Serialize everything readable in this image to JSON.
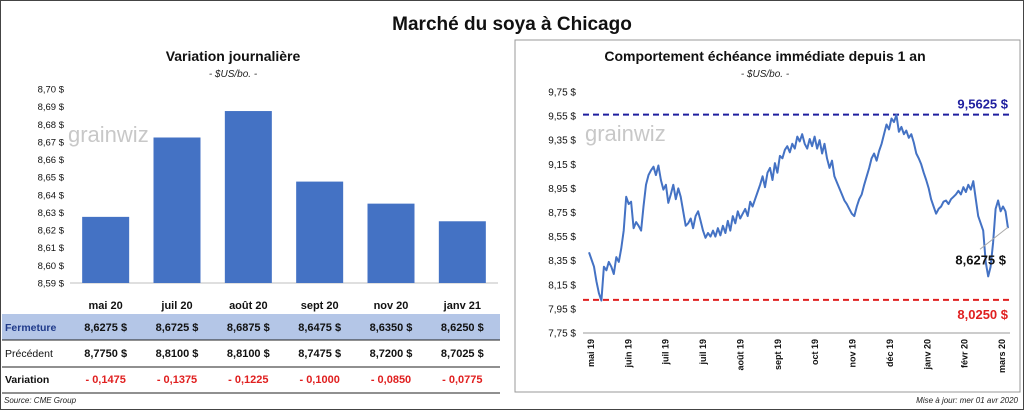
{
  "title": "Marché du soya à Chicago",
  "watermark": "grainwiz",
  "footer": {
    "source": "Source: CME Group",
    "updated": "Mise à jour: mer 01 avr 2020"
  },
  "colors": {
    "bar": "#4472c4",
    "line": "#4472c4",
    "high_line": "#1f1f9f",
    "low_line": "#e02020",
    "fermeture_row": "#b4c6e7",
    "negative": "#e02020"
  },
  "chart_data": [
    {
      "type": "bar",
      "title": "Variation journalière",
      "subtitle": "- $US/bo. -",
      "categories": [
        "mai 20",
        "juil 20",
        "août 20",
        "sept 20",
        "nov 20",
        "janv 21"
      ],
      "values": [
        8.6275,
        8.6725,
        8.6875,
        8.6475,
        8.635,
        8.625
      ],
      "ylim": [
        8.59,
        8.7
      ],
      "yticks": [
        "8,59 $",
        "8,60 $",
        "8,61 $",
        "8,62 $",
        "8,63 $",
        "8,64 $",
        "8,65 $",
        "8,66 $",
        "8,67 $",
        "8,68 $",
        "8,69 $",
        "8,70 $"
      ],
      "table": {
        "rows": [
          {
            "label": "Fermeture",
            "cells": [
              "8,6275  $",
              "8,6725  $",
              "8,6875  $",
              "8,6475  $",
              "8,6350  $",
              "8,6250  $"
            ]
          },
          {
            "label": "Précédent",
            "cells": [
              "8,7750  $",
              "8,8100  $",
              "8,8100  $",
              "8,7475  $",
              "8,7200  $",
              "8,7025  $"
            ]
          },
          {
            "label": "Variation",
            "cells": [
              "- 0,1475",
              "- 0,1375",
              "- 0,1225",
              "- 0,1000",
              "- 0,0850",
              "- 0,0775"
            ]
          }
        ]
      }
    },
    {
      "type": "line",
      "title": "Comportement  échéance immédiate depuis 1 an",
      "subtitle": "- $US/bo. -",
      "ylim": [
        7.75,
        9.75
      ],
      "yticks": [
        "7,75 $",
        "7,95 $",
        "8,15 $",
        "8,35 $",
        "8,55 $",
        "8,75 $",
        "8,95 $",
        "9,15 $",
        "9,35 $",
        "9,55 $",
        "9,75 $"
      ],
      "xticks": [
        "mai 19",
        "juin 19",
        "juil 19",
        "juil 19",
        "août 19",
        "sept 19",
        "oct 19",
        "nov 19",
        "déc 19",
        "janv 20",
        "févr 20",
        "mars 20"
      ],
      "high": {
        "value": 9.5625,
        "label": "9,5625  $"
      },
      "low": {
        "value": 8.025,
        "label": "8,0250  $"
      },
      "last": {
        "value": 8.6275,
        "label": "8,6275 $"
      },
      "series": [
        {
          "values": [
            8.42,
            8.36,
            8.3,
            8.18,
            8.08,
            8.02,
            8.3,
            8.27,
            8.34,
            8.3,
            8.24,
            8.38,
            8.34,
            8.45,
            8.6,
            8.88,
            8.82,
            8.84,
            8.62,
            8.67,
            8.64,
            8.6,
            8.8,
            8.98,
            9.06,
            9.1,
            9.13,
            9.06,
            9.14,
            9.02,
            8.94,
            8.98,
            8.83,
            8.9,
            8.98,
            8.86,
            8.95,
            8.88,
            8.76,
            8.64,
            8.66,
            8.7,
            8.62,
            8.72,
            8.76,
            8.68,
            8.6,
            8.54,
            8.58,
            8.55,
            8.6,
            8.55,
            8.62,
            8.56,
            8.64,
            8.58,
            8.68,
            8.6,
            8.72,
            8.66,
            8.76,
            8.7,
            8.74,
            8.78,
            8.72,
            8.84,
            8.8,
            8.86,
            8.92,
            8.98,
            9.05,
            8.96,
            9.08,
            9.12,
            9.02,
            9.16,
            9.08,
            9.22,
            9.2,
            9.27,
            9.3,
            9.25,
            9.32,
            9.28,
            9.38,
            9.34,
            9.4,
            9.32,
            9.28,
            9.36,
            9.3,
            9.38,
            9.28,
            9.35,
            9.24,
            9.32,
            9.2,
            9.12,
            9.18,
            9.05,
            9.0,
            8.95,
            8.9,
            8.85,
            8.82,
            8.78,
            8.74,
            8.72,
            8.8,
            8.86,
            8.9,
            8.98,
            9.05,
            9.12,
            9.2,
            9.24,
            9.18,
            9.26,
            9.32,
            9.4,
            9.48,
            9.44,
            9.53,
            9.5,
            9.56,
            9.42,
            9.46,
            9.4,
            9.43,
            9.37,
            9.4,
            9.33,
            9.24,
            9.2,
            9.15,
            9.08,
            9.02,
            8.95,
            8.86,
            8.8,
            8.74,
            8.78,
            8.8,
            8.84,
            8.85,
            8.82,
            8.86,
            8.88,
            8.9,
            8.93,
            8.9,
            8.96,
            8.92,
            8.98,
            8.94,
            9.01,
            8.86,
            8.72,
            8.66,
            8.6,
            8.34,
            8.22,
            8.3,
            8.5,
            8.78,
            8.85,
            8.76,
            8.8,
            8.76,
            8.62
          ]
        }
      ]
    }
  ]
}
